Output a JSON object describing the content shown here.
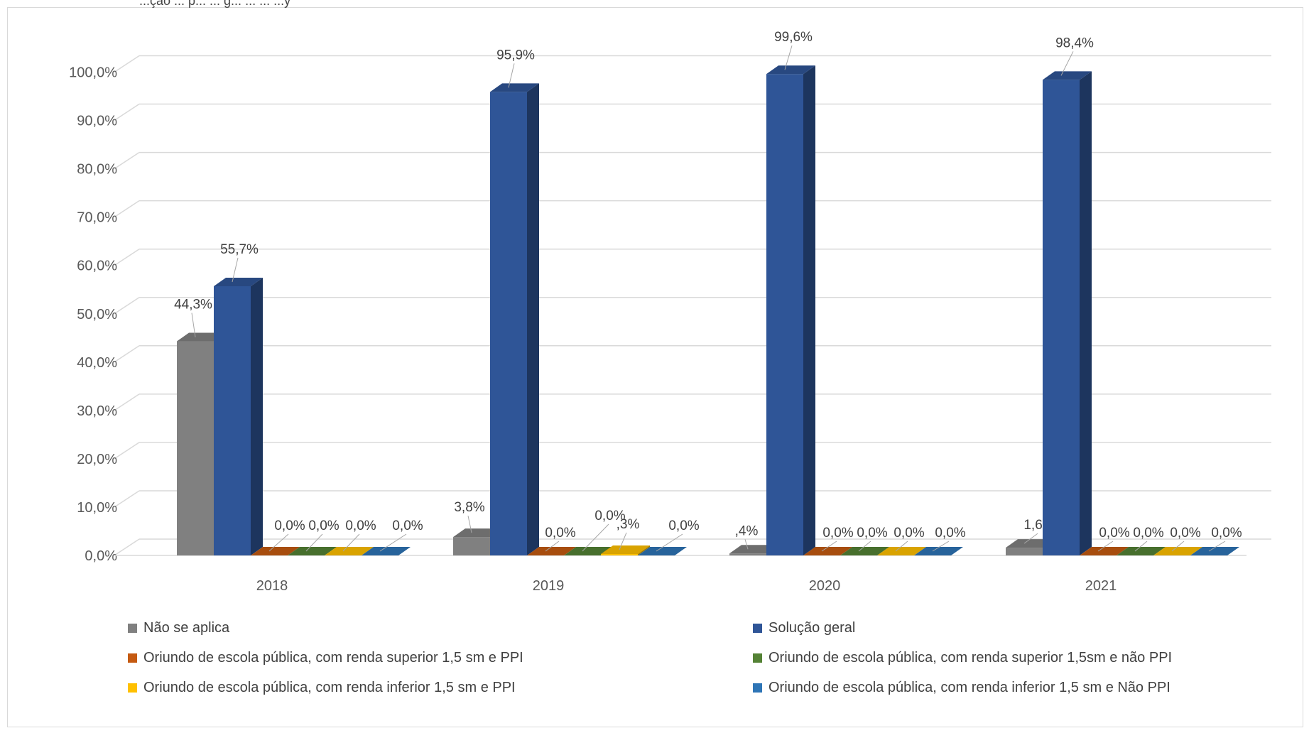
{
  "header": {
    "partial_title": "...ção ... p... ... g... ... ... ...y"
  },
  "chart_data": {
    "type": "bar",
    "categories": [
      "2018",
      "2019",
      "2020",
      "2021"
    ],
    "ylim": [
      0,
      100
    ],
    "yticks": [
      "0,0%",
      "10,0%",
      "20,0%",
      "30,0%",
      "40,0%",
      "50,0%",
      "60,0%",
      "70,0%",
      "80,0%",
      "90,0%",
      "100,0%"
    ],
    "grid": true,
    "legend_position": "bottom",
    "three_d": true,
    "series": [
      {
        "name": "Não se aplica",
        "color": "#808080",
        "values": [
          44.3,
          3.8,
          0.4,
          1.6
        ],
        "labels": [
          "44,3%",
          "3,8%",
          ",4%",
          "1,6%"
        ]
      },
      {
        "name": "Solução geral",
        "color": "#2f5597",
        "values": [
          55.7,
          95.9,
          99.6,
          98.4
        ],
        "labels": [
          "55,7%",
          "95,9%",
          "99,6%",
          "98,4%"
        ]
      },
      {
        "name": "Oriundo de escola pública, com renda superior 1,5 sm e  PPI",
        "color": "#c55a11",
        "values": [
          0,
          0,
          0,
          0
        ],
        "labels": [
          "0,0%",
          "0,0%",
          "0,0%",
          "0,0%"
        ]
      },
      {
        "name": "Oriundo de escola pública, com renda superior 1,5sm e não PPI",
        "color": "#548235",
        "values": [
          0,
          0,
          0,
          0
        ],
        "labels": [
          "0,0%",
          "0,0%",
          "0,0%",
          "0,0%"
        ]
      },
      {
        "name": "Oriundo de escola pública, com renda inferior 1,5 sm e PPI",
        "color": "#ffc000",
        "values": [
          0,
          0.3,
          0,
          0
        ],
        "labels": [
          "0,0%",
          ",3%",
          "0,0%",
          "0,0%"
        ]
      },
      {
        "name": "Oriundo de escola pública, com renda inferior 1,5 sm e Não PPI",
        "color": "#2e75b6",
        "values": [
          0,
          0,
          0,
          0
        ],
        "labels": [
          "0,0%",
          "0,0%",
          "0,0%",
          "0,0%"
        ]
      }
    ]
  }
}
